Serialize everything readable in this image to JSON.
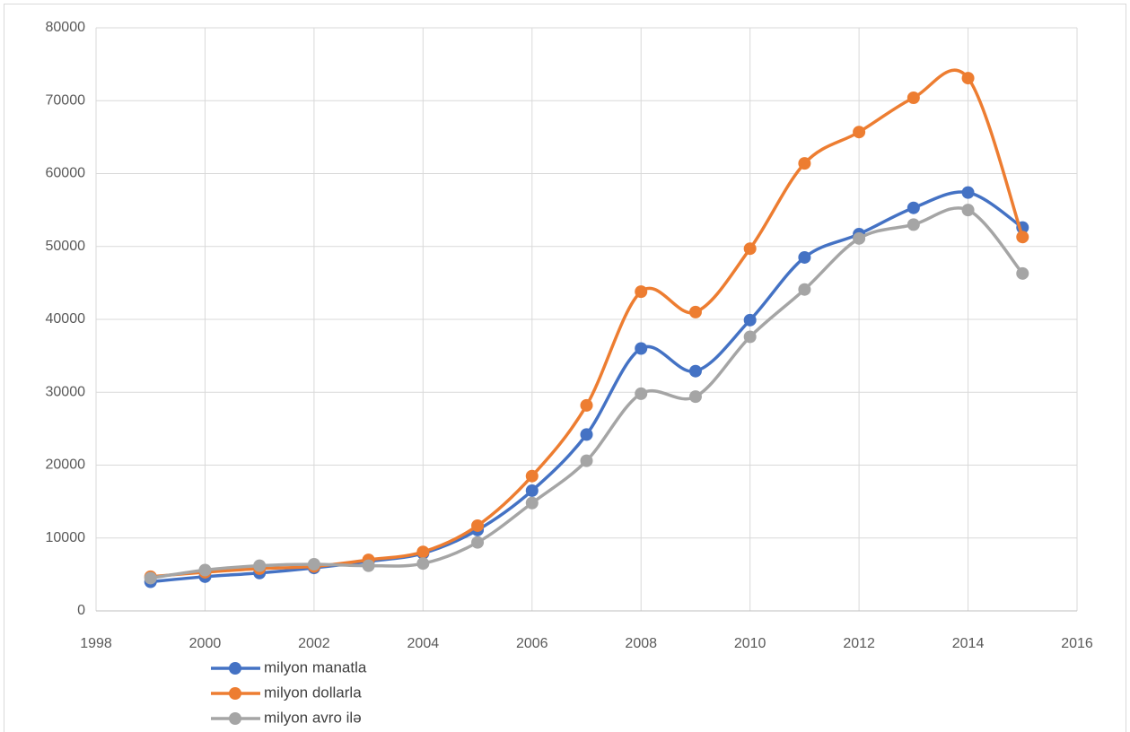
{
  "chart_data": {
    "type": "line",
    "x": [
      1999,
      2000,
      2001,
      2002,
      2003,
      2004,
      2005,
      2006,
      2007,
      2008,
      2009,
      2010,
      2011,
      2012,
      2013,
      2014,
      2015
    ],
    "series": [
      {
        "name": "milyon manatla",
        "color": "#4472c4",
        "values": [
          4000,
          4700,
          5200,
          5900,
          6800,
          7900,
          11100,
          16500,
          24200,
          36000,
          32900,
          39900,
          48500,
          51700,
          55300,
          57400,
          52600
        ]
      },
      {
        "name": "milyon dollarla",
        "color": "#ed7d31",
        "values": [
          4700,
          5300,
          5800,
          6100,
          7000,
          8100,
          11700,
          18500,
          28200,
          43800,
          41000,
          49700,
          61400,
          65700,
          70400,
          73100,
          51300
        ]
      },
      {
        "name": "milyon avro ilə",
        "color": "#a5a5a5",
        "values": [
          4500,
          5600,
          6200,
          6400,
          6200,
          6500,
          9400,
          14800,
          20600,
          29800,
          29400,
          37600,
          44100,
          51100,
          53000,
          55000,
          46300
        ]
      }
    ],
    "xlim": [
      1998,
      2016
    ],
    "xticks": [
      1998,
      2000,
      2002,
      2004,
      2006,
      2008,
      2010,
      2012,
      2014,
      2016
    ],
    "ylim": [
      0,
      80000
    ],
    "yticks": [
      0,
      10000,
      20000,
      30000,
      40000,
      50000,
      60000,
      70000,
      80000
    ],
    "grid": true,
    "smooth": true,
    "legend": "bottom-left"
  }
}
